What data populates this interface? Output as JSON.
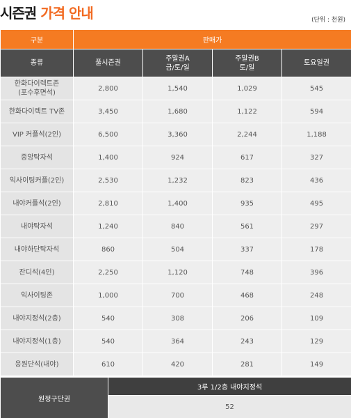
{
  "header": {
    "title_black": "시즌권",
    "title_orange": "가격 안내",
    "unit_note": "(단위 : 천원)"
  },
  "table": {
    "group_header": "구분",
    "sale_header": "판매가",
    "type_header": "종류",
    "columns": [
      "풀시즌권",
      "주말권A\n금/토/일",
      "주말권B\n토/일",
      "토요일권"
    ],
    "rows": [
      {
        "type": "한화다이렉트존\n(포수후면석)",
        "values": [
          "2,800",
          "1,540",
          "1,029",
          "545"
        ]
      },
      {
        "type": "한화다이렉트 TV존",
        "values": [
          "3,450",
          "1,680",
          "1,122",
          "594"
        ]
      },
      {
        "type": "VIP 커플석(2인)",
        "values": [
          "6,500",
          "3,360",
          "2,244",
          "1,188"
        ]
      },
      {
        "type": "중앙탁자석",
        "values": [
          "1,400",
          "924",
          "617",
          "327"
        ]
      },
      {
        "type": "익사이팅커플(2인)",
        "values": [
          "2,530",
          "1,232",
          "823",
          "436"
        ]
      },
      {
        "type": "내야커플석(2인)",
        "values": [
          "2,810",
          "1,400",
          "935",
          "495"
        ]
      },
      {
        "type": "내야탁자석",
        "values": [
          "1,240",
          "840",
          "561",
          "297"
        ]
      },
      {
        "type": "내야하단탁자석",
        "values": [
          "860",
          "504",
          "337",
          "178"
        ]
      },
      {
        "type": "잔디석(4인)",
        "values": [
          "2,250",
          "1,120",
          "748",
          "396"
        ]
      },
      {
        "type": "익사이팅존",
        "values": [
          "1,000",
          "700",
          "468",
          "248"
        ]
      },
      {
        "type": "내야지정석(2층)",
        "values": [
          "540",
          "308",
          "206",
          "109"
        ]
      },
      {
        "type": "내야지정석(1층)",
        "values": [
          "540",
          "364",
          "243",
          "129"
        ]
      },
      {
        "type": "응원단석(내야)",
        "values": [
          "610",
          "420",
          "281",
          "149"
        ]
      }
    ]
  },
  "remote": {
    "label": "원정구단권",
    "header": "3루 1/2층 내야지정석",
    "value": "52"
  },
  "colors": {
    "accent": "#f57b22",
    "title_orange": "#f26a21",
    "dark_header": "#4d4d4d",
    "cell_bg": "#eeeeee"
  }
}
